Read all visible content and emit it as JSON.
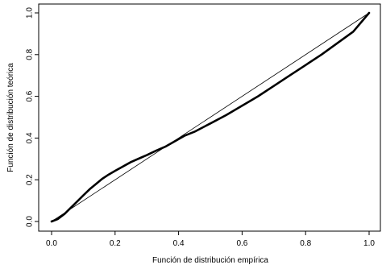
{
  "chart_data": {
    "type": "line",
    "title": "",
    "xlabel": "Función de distribución empírica",
    "ylabel": "Función de distribución teórica",
    "xlim": [
      0,
      1
    ],
    "ylim": [
      0,
      1
    ],
    "x_ticks": [
      0.0,
      0.2,
      0.4,
      0.6,
      0.8,
      1.0
    ],
    "x_tick_labels": [
      "0.0",
      "0.2",
      "0.4",
      "0.6",
      "0.8",
      "1.0"
    ],
    "y_ticks": [
      0.0,
      0.2,
      0.4,
      0.6,
      0.8,
      1.0
    ],
    "y_tick_labels": [
      "0.0",
      "0.2",
      "0.4",
      "0.6",
      "0.8",
      "1.0"
    ],
    "grid": false,
    "legend": "none",
    "reference_line": {
      "x": [
        0,
        1
      ],
      "y": [
        0,
        1
      ]
    },
    "series": [
      {
        "x": [
          0.0,
          0.02,
          0.04,
          0.06,
          0.08,
          0.1,
          0.12,
          0.14,
          0.16,
          0.18,
          0.2,
          0.22,
          0.25,
          0.28,
          0.3,
          0.33,
          0.36,
          0.4,
          0.42,
          0.45,
          0.5,
          0.55,
          0.6,
          0.65,
          0.7,
          0.75,
          0.8,
          0.85,
          0.9,
          0.95,
          1.0
        ],
        "y": [
          0.0,
          0.012,
          0.035,
          0.065,
          0.095,
          0.125,
          0.155,
          0.18,
          0.205,
          0.225,
          0.243,
          0.26,
          0.285,
          0.305,
          0.318,
          0.34,
          0.36,
          0.395,
          0.412,
          0.43,
          0.47,
          0.51,
          0.555,
          0.6,
          0.65,
          0.7,
          0.75,
          0.8,
          0.855,
          0.91,
          1.0
        ]
      }
    ]
  }
}
